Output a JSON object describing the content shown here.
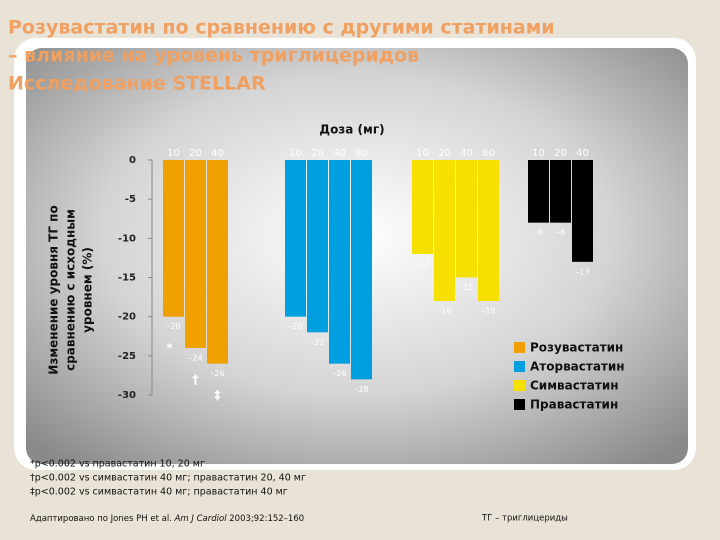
{
  "chart_data": {
    "type": "bar",
    "title": [
      "Розувастатин по сравнению с другими статинами",
      "– влияние на уровень триглицеридов",
      "Исследование STELLAR"
    ],
    "x_label": "Доза (мг)",
    "y_label": [
      "Изменение уровня ТГ по",
      "сравнению с исходным",
      "уровнем (%)"
    ],
    "ylim": [
      0,
      -30
    ],
    "yticks": [
      0,
      -5,
      -10,
      -15,
      -20,
      -25,
      -30
    ],
    "series": [
      {
        "name": "Розувастатин",
        "color": "#f0a000",
        "doses": [
          "10",
          "20",
          "40"
        ],
        "values": [
          -20,
          -24,
          -26
        ],
        "value_labels": [
          "–20",
          "–24",
          "–26"
        ],
        "annotations": [
          "*",
          "†",
          "‡"
        ]
      },
      {
        "name": "Аторвастатин",
        "color": "#00a0e0",
        "doses": [
          "10",
          "20",
          "40",
          "80"
        ],
        "values": [
          -20,
          -22,
          -26,
          -28
        ],
        "value_labels": [
          "–20",
          "–22",
          "–26",
          "–28"
        ]
      },
      {
        "name": "Симвастатин",
        "color": "#f5e000",
        "doses": [
          "10",
          "20",
          "40",
          "80"
        ],
        "values": [
          -12,
          -18,
          -15,
          -18
        ],
        "value_labels": [
          "–12",
          "–18",
          "–15",
          "–18"
        ]
      },
      {
        "name": "Правастатин",
        "color": "#000000",
        "doses": [
          "10",
          "20",
          "40"
        ],
        "values": [
          -8,
          -8,
          -13
        ],
        "value_labels": [
          "–8",
          "–8",
          "–13"
        ]
      }
    ],
    "footnotes": [
      "*p<0.002 vs правастатин 10, 20 мг",
      "†p<0.002 vs симвастатин 40 мг; правастатин 20, 40 мг",
      "‡p<0.002 vs симвастатин 40 мг; правастатин 40 мг"
    ],
    "source": [
      "Адаптировано по Jones PH et al. ",
      "Am J Cardiol",
      " 2003;92:152–160"
    ],
    "abbreviation": "ТГ – триглицериды"
  }
}
